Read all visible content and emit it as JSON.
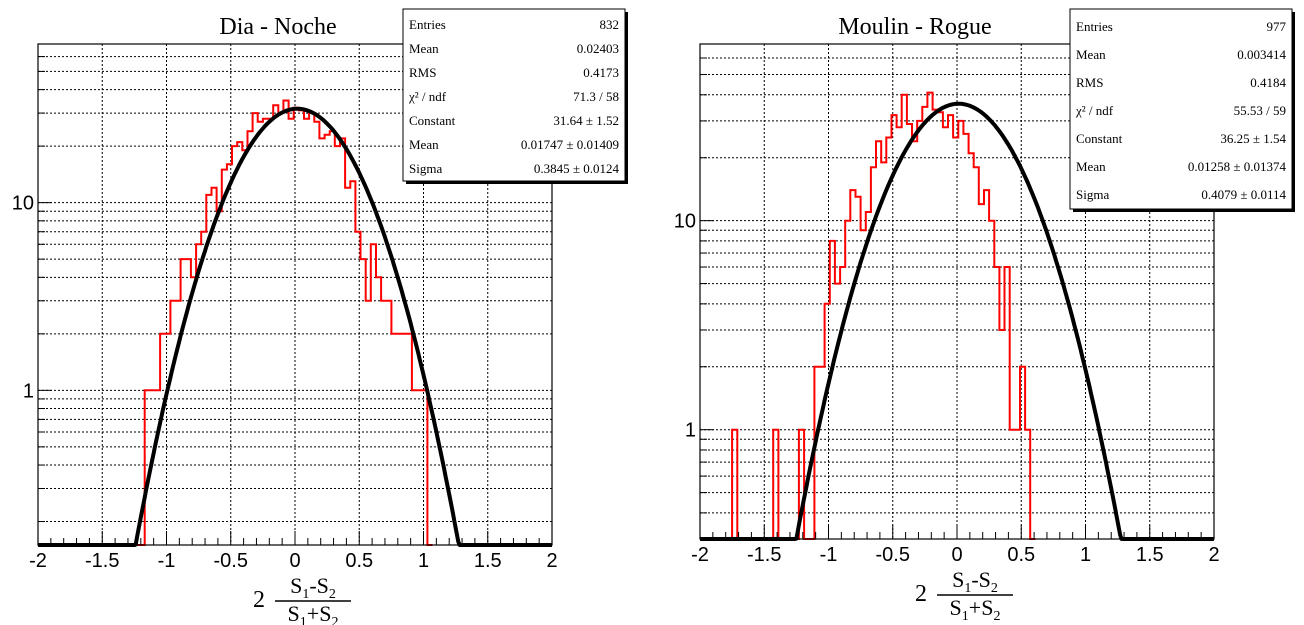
{
  "chart_data": [
    {
      "type": "histogram",
      "title": "Dia - Noche",
      "xlabel": "2 (S1-S2)/(S1+S2)",
      "xlim": [
        -2,
        2
      ],
      "ylim": [
        0.15,
        70
      ],
      "yscale": "log",
      "grid": true,
      "xticks": [
        -2,
        -1.5,
        -1,
        -0.5,
        0,
        0.5,
        1,
        1.5,
        2
      ],
      "ytick_labels": [
        {
          "value": 1,
          "label": "1"
        },
        {
          "value": 10,
          "label": "10"
        }
      ],
      "histogram_color": "#ff0000",
      "fit_color": "#000000",
      "bins": {
        "lo": -1.25,
        "width": 0.04,
        "counts": [
          0,
          0,
          1,
          1,
          1,
          2,
          2,
          3,
          3,
          5,
          5,
          4,
          6,
          7,
          11,
          12,
          9,
          15,
          16,
          20,
          21,
          19,
          24,
          30,
          27,
          28,
          28,
          33,
          30,
          35,
          28,
          32,
          31,
          28,
          30,
          27,
          22,
          23,
          24,
          20,
          22,
          12,
          13,
          7,
          5,
          3,
          6,
          4,
          3,
          3,
          2,
          2,
          2,
          2,
          1,
          1,
          1,
          0
        ]
      },
      "fit": {
        "function": "gaus",
        "constant": 31.64,
        "mean": 0.01747,
        "sigma": 0.3845
      },
      "stats": [
        {
          "label": "Entries",
          "value": "832"
        },
        {
          "label": "Mean",
          "value": "0.02403"
        },
        {
          "label": "RMS",
          "value": "0.4173"
        },
        {
          "label": "χ² / ndf",
          "value": "71.3 / 58"
        },
        {
          "label": "Constant",
          "value": "31.64 ± 1.52"
        },
        {
          "label": "Mean",
          "value": "0.01747 ± 0.01409"
        },
        {
          "label": "Sigma",
          "value": "0.3845 ± 0.0124"
        }
      ]
    },
    {
      "type": "histogram",
      "title": "Moulin - Rogue",
      "xlabel": "2 (S1-S2)/(S1+S2)",
      "xlim": [
        -2,
        2
      ],
      "ylim": [
        0.3,
        70
      ],
      "yscale": "log",
      "grid": true,
      "xticks": [
        -2,
        -1.5,
        -1,
        -0.5,
        0,
        0.5,
        1,
        1.5,
        2
      ],
      "ytick_labels": [
        {
          "value": 1,
          "label": "1"
        },
        {
          "value": 10,
          "label": "10"
        }
      ],
      "histogram_color": "#ff0000",
      "fit_color": "#000000",
      "bins": {
        "lo": -1.75,
        "width": 0.04,
        "counts": [
          1,
          0,
          0,
          0,
          0,
          0,
          0,
          0,
          1,
          0,
          0,
          0,
          0,
          1,
          0,
          0,
          2,
          2,
          4,
          8,
          5,
          6,
          10,
          14,
          13,
          9,
          11,
          18,
          24,
          19,
          25,
          32,
          28,
          40,
          29,
          24,
          30,
          35,
          41,
          34,
          33,
          28,
          32,
          25,
          30,
          26,
          21,
          18,
          12,
          14,
          10,
          6,
          3,
          6,
          1,
          1,
          2,
          1,
          0
        ]
      },
      "fit": {
        "function": "gaus",
        "constant": 36.25,
        "mean": 0.01258,
        "sigma": 0.4079
      },
      "stats": [
        {
          "label": "Entries",
          "value": "977"
        },
        {
          "label": "Mean",
          "value": "0.003414"
        },
        {
          "label": "RMS",
          "value": "0.4184"
        },
        {
          "label": "χ² / ndf",
          "value": "55.53 / 59"
        },
        {
          "label": "Constant",
          "value": "36.25 ± 1.54"
        },
        {
          "label": "Mean",
          "value": "0.01258 ± 0.01374"
        },
        {
          "label": "Sigma",
          "value": "0.4079 ± 0.0114"
        }
      ]
    }
  ]
}
